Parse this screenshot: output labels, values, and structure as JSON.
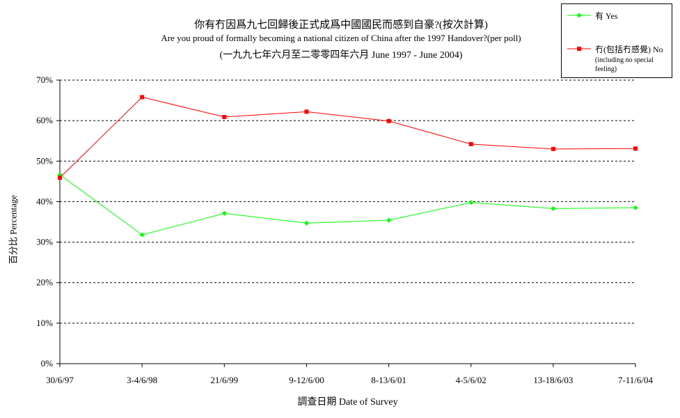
{
  "chart_data": {
    "type": "line",
    "title_zh": "你有冇因爲九七回歸後正式成爲中國國民而感到自豪?(按次計算)",
    "title_en": "Are you proud of formally becoming a national citizen of China after the 1997 Handover?(per poll)",
    "subtitle": "(一九九七年六月至二零零四年六月 June 1997 - June 2004)",
    "xlabel": "調查日期 Date of Survey",
    "ylabel": "百分比 Percentage",
    "categories": [
      "30/6/97",
      "3-4/6/98",
      "21/6/99",
      "9-12/6/00",
      "8-13/6/01",
      "4-5/6/02",
      "13-18/6/03",
      "7-11/6/04"
    ],
    "ylim": [
      0,
      70
    ],
    "yticks": [
      0,
      10,
      20,
      30,
      40,
      50,
      60,
      70
    ],
    "ytick_labels": [
      "0%",
      "10%",
      "20%",
      "30%",
      "40%",
      "50%",
      "60%",
      "70%"
    ],
    "grid": true,
    "legend_position": "top-right",
    "series": [
      {
        "name": "有 Yes",
        "color": "#00ff00",
        "marker": "diamond",
        "values": [
          46.6,
          31.8,
          37.1,
          34.7,
          35.4,
          39.8,
          38.3,
          38.5
        ]
      },
      {
        "name": "冇(包括冇感覺) No",
        "name_sub": "(including no special feeling)",
        "color": "#ff0000",
        "marker": "square",
        "values": [
          45.9,
          65.8,
          60.9,
          62.2,
          59.9,
          54.2,
          53.0,
          53.1
        ]
      }
    ]
  }
}
